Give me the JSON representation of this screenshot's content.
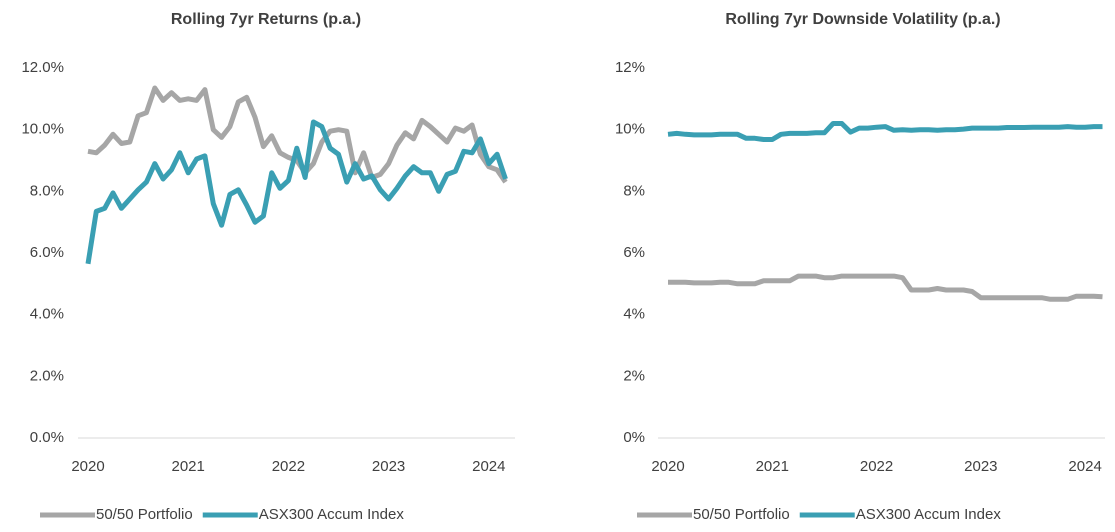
{
  "chart_data": [
    {
      "type": "line",
      "title": "Rolling 7yr Returns (p.a.)",
      "categories": [
        "2020",
        null,
        null,
        null,
        null,
        null,
        null,
        null,
        null,
        null,
        null,
        null,
        "2021",
        null,
        null,
        null,
        null,
        null,
        null,
        null,
        null,
        null,
        null,
        null,
        "2022",
        null,
        null,
        null,
        null,
        null,
        null,
        null,
        null,
        null,
        null,
        null,
        "2023",
        null,
        null,
        null,
        null,
        null,
        null,
        null,
        null,
        null,
        null,
        null,
        "2024",
        null,
        null
      ],
      "ylim": [
        0,
        12
      ],
      "yticks": [
        {
          "value": 0,
          "label": "0.0%"
        },
        {
          "value": 2,
          "label": "2.0%"
        },
        {
          "value": 4,
          "label": "4.0%"
        },
        {
          "value": 6,
          "label": "6.0%"
        },
        {
          "value": 8,
          "label": "8.0%"
        },
        {
          "value": 10,
          "label": "10.0%"
        },
        {
          "value": 12,
          "label": "12.0%"
        }
      ],
      "grid": false,
      "series": [
        {
          "name": "50/50 Portfolio",
          "color": "#a6a6a6",
          "values": [
            9.3,
            9.25,
            9.5,
            9.85,
            9.55,
            9.6,
            10.45,
            10.55,
            11.35,
            10.95,
            11.2,
            10.95,
            11.0,
            10.95,
            11.3,
            10.0,
            9.75,
            10.1,
            10.9,
            11.05,
            10.4,
            9.45,
            9.8,
            9.25,
            9.1,
            9.0,
            8.6,
            8.9,
            9.6,
            9.95,
            10.0,
            9.95,
            8.6,
            9.25,
            8.45,
            8.55,
            8.9,
            9.5,
            9.9,
            9.7,
            10.3,
            10.1,
            9.85,
            9.6,
            10.05,
            9.95,
            10.15,
            9.2,
            8.8,
            8.7,
            8.3
          ]
        },
        {
          "name": "ASX300 Accum Index",
          "color": "#3a9fb3",
          "values": [
            5.65,
            7.35,
            7.45,
            7.95,
            7.45,
            7.75,
            8.05,
            8.3,
            8.9,
            8.4,
            8.7,
            9.25,
            8.6,
            9.05,
            9.15,
            7.6,
            6.9,
            7.9,
            8.05,
            7.55,
            7.0,
            7.2,
            8.6,
            8.1,
            8.35,
            9.4,
            8.45,
            10.25,
            10.1,
            9.4,
            9.2,
            8.3,
            8.9,
            8.4,
            8.5,
            8.05,
            7.75,
            8.1,
            8.5,
            8.8,
            8.6,
            8.6,
            8.0,
            8.55,
            8.65,
            9.3,
            9.25,
            9.7,
            8.9,
            9.2,
            8.4
          ]
        }
      ]
    },
    {
      "type": "line",
      "title": "Rolling 7yr Downside Volatility (p.a.)",
      "categories": [
        "2020",
        null,
        null,
        null,
        null,
        null,
        null,
        null,
        null,
        null,
        null,
        null,
        "2021",
        null,
        null,
        null,
        null,
        null,
        null,
        null,
        null,
        null,
        null,
        null,
        "2022",
        null,
        null,
        null,
        null,
        null,
        null,
        null,
        null,
        null,
        null,
        null,
        "2023",
        null,
        null,
        null,
        null,
        null,
        null,
        null,
        null,
        null,
        null,
        null,
        "2024",
        null,
        null
      ],
      "ylim": [
        0,
        12
      ],
      "yticks": [
        {
          "value": 0,
          "label": "0%"
        },
        {
          "value": 2,
          "label": "2%"
        },
        {
          "value": 4,
          "label": "4%"
        },
        {
          "value": 6,
          "label": "6%"
        },
        {
          "value": 8,
          "label": "8%"
        },
        {
          "value": 10,
          "label": "10%"
        },
        {
          "value": 12,
          "label": "12%"
        }
      ],
      "grid": false,
      "series": [
        {
          "name": "50/50 Portfolio",
          "color": "#a6a6a6",
          "values": [
            5.05,
            5.05,
            5.05,
            5.03,
            5.03,
            5.03,
            5.05,
            5.05,
            5.0,
            5.0,
            5.0,
            5.1,
            5.1,
            5.1,
            5.1,
            5.25,
            5.25,
            5.25,
            5.2,
            5.2,
            5.25,
            5.25,
            5.25,
            5.25,
            5.25,
            5.25,
            5.25,
            5.2,
            4.8,
            4.8,
            4.8,
            4.85,
            4.8,
            4.8,
            4.8,
            4.75,
            4.55,
            4.55,
            4.55,
            4.55,
            4.55,
            4.55,
            4.55,
            4.55,
            4.5,
            4.5,
            4.5,
            4.6,
            4.6,
            4.6,
            4.58
          ]
        },
        {
          "name": "ASX300 Accum Index",
          "color": "#3a9fb3",
          "values": [
            9.85,
            9.88,
            9.85,
            9.83,
            9.83,
            9.83,
            9.85,
            9.85,
            9.85,
            9.72,
            9.72,
            9.68,
            9.68,
            9.85,
            9.88,
            9.88,
            9.88,
            9.9,
            9.9,
            10.2,
            10.2,
            9.92,
            10.05,
            10.05,
            10.08,
            10.1,
            9.98,
            10.0,
            9.98,
            10.0,
            10.0,
            9.98,
            10.0,
            10.0,
            10.02,
            10.05,
            10.05,
            10.05,
            10.05,
            10.07,
            10.07,
            10.07,
            10.08,
            10.08,
            10.08,
            10.08,
            10.1,
            10.08,
            10.08,
            10.1,
            10.1
          ]
        }
      ]
    }
  ]
}
